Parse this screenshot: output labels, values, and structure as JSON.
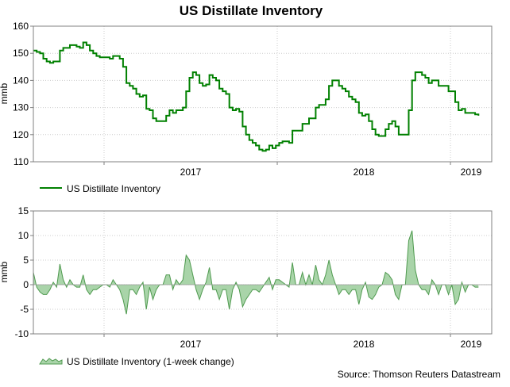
{
  "colors": {
    "line": "#008000",
    "area_fill": "#a9d4a9",
    "area_line": "#4f9a4f",
    "frame": "#808080",
    "grid": "#cccccc"
  },
  "chart_data": [
    {
      "type": "line",
      "title": "US Distillate Inventory",
      "ylabel": "mmb",
      "ylim": [
        110,
        160
      ],
      "yticks": [
        "160",
        "150",
        "140",
        "130",
        "120",
        "110"
      ],
      "xlim": [
        "2016-08-05",
        "2019-03-29"
      ],
      "xticks": [
        {
          "label": "2017",
          "date": "2017-01-01"
        },
        {
          "label": "2018",
          "date": "2018-01-01"
        },
        {
          "label": "2019",
          "date": "2019-01-01"
        }
      ],
      "grid": true,
      "legend_position": "bottom-left",
      "series": [
        {
          "name": "US Distillate Inventory",
          "start": "2016-08-05",
          "step_days": 7,
          "values": [
            151,
            150.5,
            150,
            148,
            147,
            146.5,
            147,
            147,
            151,
            152,
            152,
            153,
            153,
            152.5,
            152,
            154,
            153,
            151,
            150,
            149,
            148.5,
            148.5,
            148.5,
            148,
            149,
            149,
            148,
            145,
            139,
            138,
            137,
            135,
            134,
            134.5,
            129.5,
            129,
            126,
            125,
            125,
            125,
            127,
            129,
            128,
            129,
            129,
            130,
            136,
            141,
            143,
            142,
            139,
            138,
            138.5,
            142,
            141,
            140,
            137,
            136,
            135,
            130,
            129,
            129.5,
            128.5,
            123,
            120,
            118,
            117,
            116,
            114.5,
            114,
            114.5,
            116,
            115,
            116,
            117,
            117.5,
            117.5,
            117,
            121.5,
            121.5,
            121.5,
            124,
            124,
            126,
            126,
            130,
            131,
            131,
            133,
            138,
            140,
            140,
            138,
            137,
            136,
            134,
            133,
            132,
            128,
            127,
            127.5,
            125,
            122,
            120,
            119.5,
            119.5,
            122,
            124,
            125,
            123,
            120,
            120,
            120,
            129,
            140,
            143,
            143,
            142,
            141,
            139,
            140,
            140,
            138,
            138,
            138,
            136,
            136,
            132,
            129,
            129.5,
            128,
            128,
            128,
            127.5,
            127
          ]
        }
      ]
    },
    {
      "type": "area",
      "ylabel": "mmb",
      "ylim": [
        -10,
        15
      ],
      "yticks": [
        "15",
        "10",
        "5",
        "0",
        "-5",
        "-10"
      ],
      "xlim": [
        "2016-08-05",
        "2019-03-29"
      ],
      "xticks": [
        {
          "label": "2017",
          "date": "2017-01-01"
        },
        {
          "label": "2018",
          "date": "2018-01-01"
        },
        {
          "label": "2019",
          "date": "2019-01-01"
        }
      ],
      "grid": true,
      "legend_position": "bottom-left",
      "series": [
        {
          "name": "US Distillate Inventory (1-week change)",
          "start": "2016-08-05",
          "step_days": 7,
          "values": [
            2.5,
            -0.5,
            -1.5,
            -2,
            -2,
            -1,
            0.5,
            -0.5,
            4.2,
            1,
            -0.5,
            1,
            0,
            -0.5,
            -0.5,
            2,
            -1,
            -2,
            -1,
            -1,
            -0.5,
            0,
            0,
            -0.5,
            1,
            0,
            -1,
            -3,
            -6,
            -1,
            -1,
            -2,
            -0.5,
            0.5,
            -5,
            -0.5,
            -3,
            -1,
            0,
            0,
            2,
            2,
            -1,
            1,
            0,
            1,
            6,
            5,
            2,
            -1,
            -3,
            -1,
            0.5,
            3.5,
            -1,
            -1,
            -3,
            -1,
            -1,
            -5,
            -1,
            0.5,
            -1,
            -4.5,
            -3,
            -2,
            -1,
            -1,
            -1.5,
            -0.5,
            0.5,
            1.5,
            -1,
            1,
            1,
            0.5,
            0,
            -0.5,
            4.5,
            0,
            0,
            2.5,
            0,
            2,
            0,
            4,
            1,
            0,
            2,
            5,
            2,
            0,
            -2,
            -1,
            -1,
            -2,
            -1,
            -1,
            -4,
            -1,
            0.5,
            -2.5,
            -3,
            -2,
            -0.5,
            0,
            2.5,
            2,
            1,
            -2,
            -3,
            0,
            0,
            9,
            11,
            3,
            0,
            -1,
            -1,
            -2,
            1,
            0,
            -2,
            0,
            0,
            -2,
            0,
            -4,
            -3,
            0.5,
            -1.5,
            0,
            0,
            -0.5,
            -0.5
          ]
        }
      ]
    }
  ],
  "source": "Source: Thomson Reuters Datastream"
}
